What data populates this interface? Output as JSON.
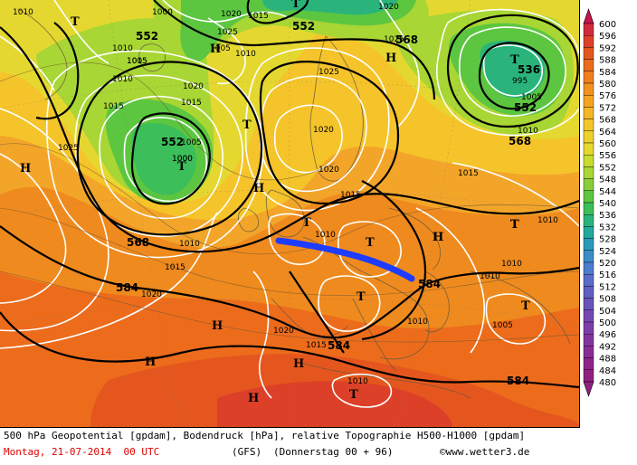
{
  "map": {
    "geopotential_labels": [
      {
        "text": "552"
      },
      {
        "text": "552"
      },
      {
        "text": "552"
      },
      {
        "text": "552"
      },
      {
        "text": "536"
      },
      {
        "text": "568"
      },
      {
        "text": "568"
      },
      {
        "text": "568"
      },
      {
        "text": "584"
      },
      {
        "text": "584"
      },
      {
        "text": "584"
      },
      {
        "text": "584"
      }
    ],
    "pressure_labels": [
      {
        "text": "1010"
      },
      {
        "text": "1000"
      },
      {
        "text": "1020"
      },
      {
        "text": "1015"
      },
      {
        "text": "1025"
      },
      {
        "text": "1005"
      },
      {
        "text": "1010"
      },
      {
        "text": "1005"
      },
      {
        "text": "1010"
      },
      {
        "text": "1015"
      },
      {
        "text": "1020"
      },
      {
        "text": "1025"
      },
      {
        "text": "1015"
      },
      {
        "text": "1010"
      },
      {
        "text": "1015"
      },
      {
        "text": "1020"
      },
      {
        "text": "1025"
      },
      {
        "text": "1005"
      },
      {
        "text": "1000"
      },
      {
        "text": "1025"
      },
      {
        "text": "1020"
      },
      {
        "text": "1015"
      },
      {
        "text": "1020"
      },
      {
        "text": "1010"
      },
      {
        "text": "1015"
      },
      {
        "text": "1010"
      },
      {
        "text": "1010"
      },
      {
        "text": "1010"
      },
      {
        "text": "1005"
      },
      {
        "text": "1010"
      },
      {
        "text": "1020"
      },
      {
        "text": "1015"
      },
      {
        "text": "1010"
      },
      {
        "text": "1010"
      },
      {
        "text": "1015"
      },
      {
        "text": "1000"
      },
      {
        "text": "995"
      },
      {
        "text": "1005"
      },
      {
        "text": "1020"
      },
      {
        "text": "1010"
      }
    ],
    "pressure_centers": [
      {
        "text": "T"
      },
      {
        "text": "T"
      },
      {
        "text": "H"
      },
      {
        "text": "H"
      },
      {
        "text": "T"
      },
      {
        "text": "T"
      },
      {
        "text": "H"
      },
      {
        "text": "T"
      },
      {
        "text": "T"
      },
      {
        "text": "H"
      },
      {
        "text": "T"
      },
      {
        "text": "T"
      },
      {
        "text": "T"
      },
      {
        "text": "H"
      },
      {
        "text": "H"
      },
      {
        "text": "H"
      },
      {
        "text": "T"
      },
      {
        "text": "H"
      },
      {
        "text": "H"
      },
      {
        "text": "T"
      },
      {
        "text": "T"
      },
      {
        "text": "H"
      }
    ]
  },
  "legend": {
    "unit_values": [
      "600",
      "596",
      "592",
      "588",
      "584",
      "580",
      "576",
      "572",
      "568",
      "564",
      "560",
      "556",
      "552",
      "548",
      "544",
      "540",
      "536",
      "532",
      "528",
      "524",
      "520",
      "516",
      "512",
      "508",
      "504",
      "500",
      "496",
      "492",
      "488",
      "484",
      "480"
    ],
    "colors": [
      "#c8144a",
      "#d22a3c",
      "#dc4028",
      "#e5561e",
      "#ec6c1c",
      "#f0801c",
      "#f3921e",
      "#f5a422",
      "#f5b626",
      "#f2c62a",
      "#eed02c",
      "#e4d82e",
      "#c8dc30",
      "#a8d634",
      "#88ce3a",
      "#5cc640",
      "#3cbe5a",
      "#2ab47c",
      "#24a89c",
      "#2a9ab8",
      "#3c8cc8",
      "#4c7ccc",
      "#5a6cc8",
      "#6060c0",
      "#6a54b8",
      "#7448b0",
      "#7c3ea8",
      "#84349e",
      "#8a2c94",
      "#8e248a",
      "#902080"
    ]
  },
  "footer": {
    "line1": "500 hPa Geopotential [gpdam], Bodendruck [hPa], relative Topographie H500-H1000 [gpdam]",
    "date": "Montag, 21-07-2014  00 UTC",
    "model": "(GFS)",
    "valid": "(Donnerstag 00 + 96)",
    "credit": "©www.wetter3.de"
  }
}
